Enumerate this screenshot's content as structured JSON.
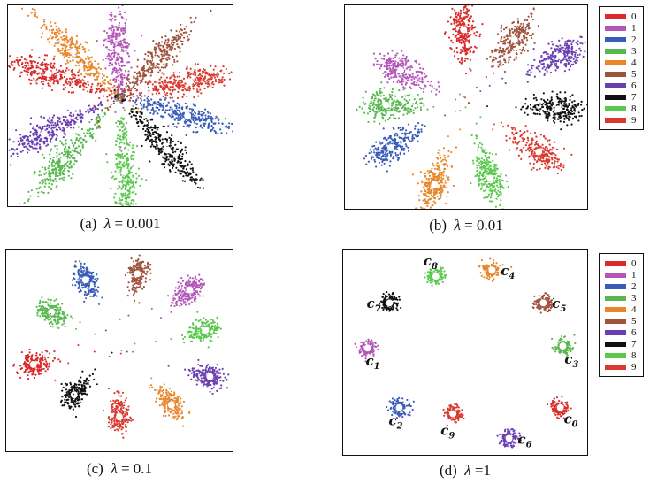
{
  "colors": {
    "class_colors": [
      "#d92b2b",
      "#b256b8",
      "#3a5cb8",
      "#58b84f",
      "#e8862a",
      "#a0523d",
      "#6a3fb0",
      "#111111",
      "#5ac84d",
      "#d93a2e"
    ]
  },
  "legend": {
    "labels": [
      "0",
      "1",
      "2",
      "3",
      "4",
      "5",
      "6",
      "7",
      "8",
      "9"
    ]
  },
  "chart_data": [
    {
      "type": "scatter",
      "caption_prefix": "(a)",
      "caption_lambda": "λ",
      "caption_value": "= 0.001",
      "description_layout": "radial petals",
      "clusters": [
        {
          "cls": 0,
          "x": 0.18,
          "y": 0.34,
          "tail_x": 0.5,
          "tail_y": 0.45
        },
        {
          "cls": 1,
          "x": 0.49,
          "y": 0.22,
          "tail_x": 0.5,
          "tail_y": 0.45
        },
        {
          "cls": 2,
          "x": 0.8,
          "y": 0.55,
          "tail_x": 0.5,
          "tail_y": 0.45
        },
        {
          "cls": 3,
          "x": 0.25,
          "y": 0.77,
          "tail_x": 0.5,
          "tail_y": 0.45
        },
        {
          "cls": 4,
          "x": 0.29,
          "y": 0.23,
          "tail_x": 0.5,
          "tail_y": 0.45
        },
        {
          "cls": 5,
          "x": 0.66,
          "y": 0.27,
          "tail_x": 0.5,
          "tail_y": 0.45
        },
        {
          "cls": 6,
          "x": 0.16,
          "y": 0.64,
          "tail_x": 0.5,
          "tail_y": 0.45
        },
        {
          "cls": 7,
          "x": 0.71,
          "y": 0.72,
          "tail_x": 0.5,
          "tail_y": 0.45
        },
        {
          "cls": 8,
          "x": 0.52,
          "y": 0.83,
          "tail_x": 0.5,
          "tail_y": 0.45
        },
        {
          "cls": 9,
          "x": 0.81,
          "y": 0.38,
          "tail_x": 0.5,
          "tail_y": 0.45
        }
      ]
    },
    {
      "type": "scatter",
      "caption_prefix": "(b)",
      "caption_lambda": "λ",
      "caption_value": "= 0.01",
      "clusters": [
        {
          "cls": 0,
          "x": 0.49,
          "y": 0.12,
          "tail_x": 0.5,
          "tail_y": 0.48
        },
        {
          "cls": 1,
          "x": 0.23,
          "y": 0.32,
          "tail_x": 0.5,
          "tail_y": 0.48
        },
        {
          "cls": 2,
          "x": 0.19,
          "y": 0.7,
          "tail_x": 0.5,
          "tail_y": 0.48
        },
        {
          "cls": 3,
          "x": 0.17,
          "y": 0.49,
          "tail_x": 0.5,
          "tail_y": 0.48
        },
        {
          "cls": 4,
          "x": 0.37,
          "y": 0.88,
          "tail_x": 0.5,
          "tail_y": 0.48
        },
        {
          "cls": 5,
          "x": 0.7,
          "y": 0.17,
          "tail_x": 0.5,
          "tail_y": 0.48
        },
        {
          "cls": 6,
          "x": 0.89,
          "y": 0.25,
          "tail_x": 0.5,
          "tail_y": 0.48
        },
        {
          "cls": 7,
          "x": 0.88,
          "y": 0.51,
          "tail_x": 0.5,
          "tail_y": 0.48
        },
        {
          "cls": 8,
          "x": 0.6,
          "y": 0.85,
          "tail_x": 0.5,
          "tail_y": 0.48
        },
        {
          "cls": 9,
          "x": 0.8,
          "y": 0.72,
          "tail_x": 0.5,
          "tail_y": 0.48
        }
      ]
    },
    {
      "type": "scatter",
      "caption_prefix": "(c)",
      "caption_lambda": "λ",
      "caption_value": "= 0.1",
      "clusters": [
        {
          "cls": 0,
          "x": 0.12,
          "y": 0.57,
          "tail_x": 0.5,
          "tail_y": 0.5
        },
        {
          "cls": 1,
          "x": 0.81,
          "y": 0.2,
          "tail_x": 0.5,
          "tail_y": 0.5
        },
        {
          "cls": 2,
          "x": 0.35,
          "y": 0.15,
          "tail_x": 0.5,
          "tail_y": 0.5
        },
        {
          "cls": 3,
          "x": 0.2,
          "y": 0.31,
          "tail_x": 0.5,
          "tail_y": 0.5
        },
        {
          "cls": 4,
          "x": 0.73,
          "y": 0.77,
          "tail_x": 0.5,
          "tail_y": 0.5
        },
        {
          "cls": 5,
          "x": 0.58,
          "y": 0.12,
          "tail_x": 0.5,
          "tail_y": 0.5
        },
        {
          "cls": 6,
          "x": 0.9,
          "y": 0.63,
          "tail_x": 0.5,
          "tail_y": 0.5
        },
        {
          "cls": 7,
          "x": 0.3,
          "y": 0.72,
          "tail_x": 0.5,
          "tail_y": 0.5
        },
        {
          "cls": 8,
          "x": 0.88,
          "y": 0.4,
          "tail_x": 0.5,
          "tail_y": 0.5
        },
        {
          "cls": 9,
          "x": 0.5,
          "y": 0.83,
          "tail_x": 0.5,
          "tail_y": 0.5
        }
      ]
    },
    {
      "type": "scatter",
      "caption_prefix": "(d)",
      "caption_lambda": "λ",
      "caption_value": "=1",
      "clusters": [
        {
          "cls": 0,
          "x": 0.89,
          "y": 0.77,
          "label": "c",
          "sub": "0"
        },
        {
          "cls": 1,
          "x": 0.1,
          "y": 0.48,
          "label": "c",
          "sub": "1"
        },
        {
          "cls": 2,
          "x": 0.23,
          "y": 0.77,
          "label": "c",
          "sub": "2"
        },
        {
          "cls": 3,
          "x": 0.9,
          "y": 0.47,
          "label": "c",
          "sub": "3"
        },
        {
          "cls": 4,
          "x": 0.61,
          "y": 0.1,
          "label": "c",
          "sub": "4"
        },
        {
          "cls": 5,
          "x": 0.82,
          "y": 0.26,
          "label": "c",
          "sub": "5"
        },
        {
          "cls": 6,
          "x": 0.68,
          "y": 0.92,
          "label": "c",
          "sub": "6"
        },
        {
          "cls": 7,
          "x": 0.19,
          "y": 0.26,
          "label": "c",
          "sub": "7"
        },
        {
          "cls": 8,
          "x": 0.38,
          "y": 0.13,
          "label": "c",
          "sub": "8"
        },
        {
          "cls": 9,
          "x": 0.45,
          "y": 0.8,
          "label": "c",
          "sub": "9"
        }
      ]
    }
  ]
}
